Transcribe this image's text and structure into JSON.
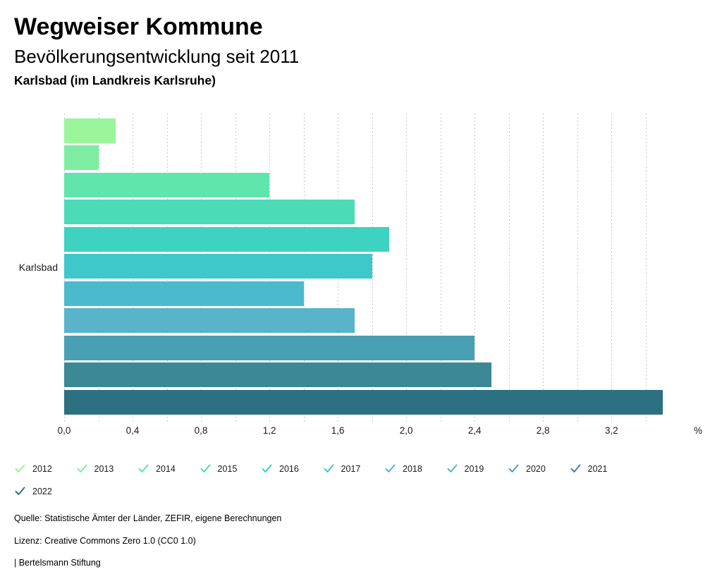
{
  "header": {
    "app_title": "Wegweiser Kommune",
    "chart_title": "Bevölkerungsentwicklung seit 2011",
    "location": "Karlsbad (im Landkreis Karlsruhe)"
  },
  "chart_data": {
    "type": "bar",
    "orientation": "horizontal",
    "title": "Bevölkerungsentwicklung seit 2011",
    "category": "Karlsbad",
    "unit": "%",
    "xlim": [
      0,
      3.5
    ],
    "grid": true,
    "grid_step": 0.2,
    "tick_step": 0.4,
    "x_tick_labels": [
      "0,0",
      "0,4",
      "0,8",
      "1,2",
      "1,6",
      "2,0",
      "2,4",
      "2,8",
      "3,2"
    ],
    "legend_position": "bottom",
    "legend_check_icon": "check-icon",
    "series": [
      {
        "name": "2012",
        "value": 0.3,
        "color": "#9AF59B"
      },
      {
        "name": "2013",
        "value": 0.2,
        "color": "#7DEEA1"
      },
      {
        "name": "2014",
        "value": 1.2,
        "color": "#60E5AC"
      },
      {
        "name": "2015",
        "value": 1.7,
        "color": "#4BDCB7"
      },
      {
        "name": "2016",
        "value": 1.9,
        "color": "#3ED3C1"
      },
      {
        "name": "2017",
        "value": 1.8,
        "color": "#3FC8CA"
      },
      {
        "name": "2018",
        "value": 1.4,
        "color": "#4CBACD"
      },
      {
        "name": "2019",
        "value": 1.7,
        "color": "#59B3C9"
      },
      {
        "name": "2020",
        "value": 2.4,
        "color": "#4AA0B3"
      },
      {
        "name": "2021",
        "value": 2.5,
        "color": "#3C8896"
      },
      {
        "name": "2022",
        "value": 3.5,
        "color": "#2B7182"
      }
    ]
  },
  "footer": {
    "source": "Quelle: Statistische Ämter der Länder, ZEFIR, eigene Berechnungen",
    "license": "Lizenz: Creative Commons Zero 1.0 (CC0 1.0)",
    "brand": "| Bertelsmann Stiftung"
  }
}
